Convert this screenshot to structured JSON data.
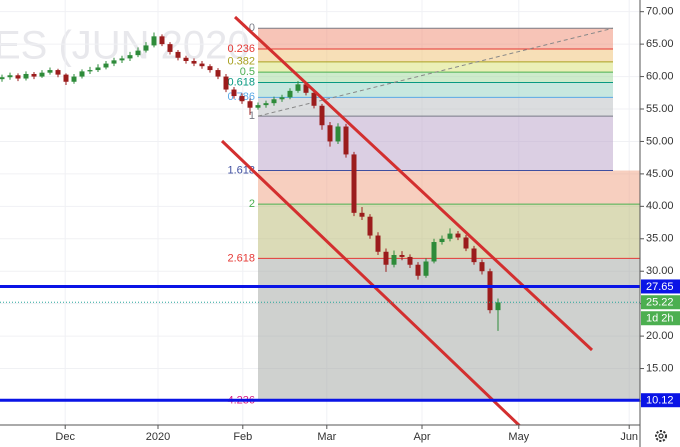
{
  "chart_data": {
    "type": "candlestick",
    "watermark": "ES (JUN 2020",
    "up_color": "#2e8b3a",
    "down_color": "#9b1c1c",
    "candles": [
      [
        59.6,
        60.3,
        59.2,
        59.9
      ],
      [
        59.9,
        60.6,
        59.5,
        60.2
      ],
      [
        60.2,
        60.5,
        59.3,
        59.7
      ],
      [
        59.7,
        60.8,
        59.4,
        60.4
      ],
      [
        60.4,
        60.7,
        59.6,
        60.0
      ],
      [
        60.0,
        61.0,
        59.8,
        60.6
      ],
      [
        60.6,
        61.4,
        60.3,
        61.0
      ],
      [
        61.0,
        61.2,
        59.9,
        60.3
      ],
      [
        60.3,
        60.5,
        58.7,
        59.2
      ],
      [
        59.2,
        60.4,
        58.9,
        60.0
      ],
      [
        60.0,
        61.1,
        59.7,
        60.8
      ],
      [
        60.8,
        61.5,
        60.4,
        61.0
      ],
      [
        61.0,
        61.9,
        60.7,
        61.4
      ],
      [
        61.4,
        62.4,
        61.1,
        62.0
      ],
      [
        62.0,
        62.9,
        61.6,
        62.5
      ],
      [
        62.5,
        63.2,
        62.1,
        62.8
      ],
      [
        62.8,
        63.8,
        62.4,
        63.3
      ],
      [
        63.3,
        64.5,
        63.0,
        64.0
      ],
      [
        64.0,
        65.3,
        63.7,
        64.8
      ],
      [
        64.8,
        66.8,
        64.5,
        66.2
      ],
      [
        66.2,
        66.5,
        64.7,
        65.0
      ],
      [
        65.0,
        65.3,
        63.4,
        63.8
      ],
      [
        63.8,
        64.1,
        62.5,
        62.9
      ],
      [
        62.9,
        63.2,
        62.0,
        62.4
      ],
      [
        62.4,
        62.8,
        61.6,
        62.0
      ],
      [
        62.0,
        62.4,
        61.2,
        61.6
      ],
      [
        61.6,
        61.9,
        60.6,
        61.0
      ],
      [
        61.0,
        61.3,
        59.6,
        60.0
      ],
      [
        60.0,
        60.4,
        57.6,
        58.0
      ],
      [
        58.0,
        58.4,
        56.6,
        57.0
      ],
      [
        57.0,
        57.4,
        55.8,
        56.2
      ],
      [
        56.2,
        56.6,
        54.1,
        55.2
      ],
      [
        55.2,
        56.0,
        54.9,
        55.6
      ],
      [
        55.6,
        56.3,
        55.2,
        55.9
      ],
      [
        55.9,
        56.9,
        55.5,
        56.5
      ],
      [
        56.5,
        57.2,
        56.1,
        56.8
      ],
      [
        56.8,
        58.2,
        56.5,
        57.8
      ],
      [
        57.8,
        59.3,
        57.5,
        58.8
      ],
      [
        58.8,
        59.1,
        57.1,
        57.5
      ],
      [
        57.5,
        57.8,
        55.1,
        55.5
      ],
      [
        55.5,
        55.8,
        51.8,
        52.5
      ],
      [
        52.5,
        53.0,
        49.2,
        50.0
      ],
      [
        50.0,
        52.8,
        49.6,
        52.3
      ],
      [
        52.3,
        52.7,
        47.5,
        48.0
      ],
      [
        48.0,
        48.4,
        38.5,
        39.0
      ],
      [
        39.0,
        39.9,
        37.9,
        38.4
      ],
      [
        38.4,
        38.8,
        35.0,
        35.5
      ],
      [
        35.5,
        36.0,
        32.5,
        33.0
      ],
      [
        33.0,
        33.5,
        29.9,
        31.0
      ],
      [
        31.0,
        33.2,
        30.6,
        32.5
      ],
      [
        32.5,
        33.1,
        31.7,
        32.2
      ],
      [
        32.2,
        32.6,
        30.5,
        31.0
      ],
      [
        31.0,
        31.4,
        28.7,
        29.3
      ],
      [
        29.3,
        32.0,
        29.0,
        31.5
      ],
      [
        31.5,
        35.0,
        31.2,
        34.5
      ],
      [
        34.5,
        35.5,
        34.1,
        35.0
      ],
      [
        35.0,
        36.6,
        34.6,
        35.8
      ],
      [
        35.8,
        36.2,
        34.8,
        35.2
      ],
      [
        35.2,
        35.6,
        33.1,
        33.5
      ],
      [
        33.5,
        33.9,
        31.0,
        31.4
      ],
      [
        31.4,
        31.8,
        29.5,
        30.0
      ],
      [
        30.0,
        30.4,
        23.5,
        24.0
      ],
      [
        24.0,
        25.8,
        20.8,
        25.2
      ]
    ],
    "xlim": [
      0,
      80
    ],
    "xticks": [
      {
        "value": 7.9,
        "label": "Dec"
      },
      {
        "value": 19.5,
        "label": "2020"
      },
      {
        "value": 30.1,
        "label": "Feb"
      },
      {
        "value": 40.6,
        "label": "Mar"
      },
      {
        "value": 52.5,
        "label": "Apr"
      },
      {
        "value": 64.6,
        "label": "May"
      },
      {
        "value": 78.4,
        "label": "Jun"
      }
    ],
    "ylim": [
      6.3,
      71.8
    ],
    "yticks": [
      {
        "value": 10,
        "label": "10.00"
      },
      {
        "value": 15,
        "label": "15.00"
      },
      {
        "value": 20,
        "label": "20.00"
      },
      {
        "value": 25,
        "label": "25.00"
      },
      {
        "value": 30,
        "label": "30.00"
      },
      {
        "value": 35,
        "label": "35.00"
      },
      {
        "value": 40,
        "label": "40.00"
      },
      {
        "value": 45,
        "label": "45.00"
      },
      {
        "value": 50,
        "label": "50.00"
      },
      {
        "value": 55,
        "label": "55.00"
      },
      {
        "value": 60,
        "label": "60.00"
      },
      {
        "value": 65,
        "label": "65.00"
      },
      {
        "value": 70,
        "label": "70.00"
      }
    ],
    "grid": true,
    "fib_levels": [
      {
        "ratio": 0,
        "price": 67.45,
        "color": "#787b86"
      },
      {
        "ratio": 0.236,
        "price": 64.25,
        "color": "#e53935",
        "fill": "#f08a70"
      },
      {
        "ratio": 0.382,
        "price": 62.27,
        "color": "#a8a020",
        "fill": "#f0c070"
      },
      {
        "ratio": 0.5,
        "price": 60.68,
        "color": "#4caf50",
        "fill": "#d8e070"
      },
      {
        "ratio": 0.618,
        "price": 59.08,
        "color": "#089981",
        "fill": "#9ed89a"
      },
      {
        "ratio": 0.786,
        "price": 56.8,
        "color": "#5aa9e6",
        "fill": "#90d0c0"
      },
      {
        "ratio": 1,
        "price": 53.9,
        "color": "#787b86",
        "fill": "#b8bcc0"
      },
      {
        "ratio": 1.618,
        "price": 45.52,
        "color": "#3f4fa0",
        "fill": "#b8a0c8"
      },
      {
        "ratio": 2,
        "price": 40.35,
        "color": "#4caf50",
        "fill": "#f0a080"
      },
      {
        "ratio": 2.618,
        "price": 31.98,
        "color": "#e53935",
        "fill": "#b8b870"
      },
      {
        "ratio": 4.236,
        "price": 10.05,
        "color": "#d81b84",
        "fill": "#a0a4a0"
      }
    ],
    "hlines": [
      {
        "value": 27.65,
        "color": "#0a14e6"
      },
      {
        "value": 10.12,
        "color": "#0a14e6"
      }
    ],
    "last_price": {
      "value": 25.22,
      "color": "#4caf50"
    },
    "countdown": "1d 2h"
  }
}
